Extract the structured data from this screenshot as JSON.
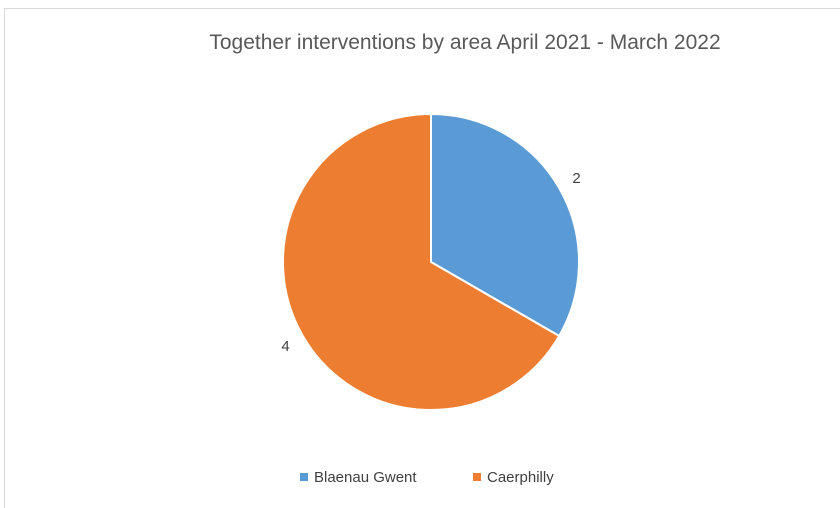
{
  "chart_data": {
    "type": "pie",
    "title": "Together interventions by area April 2021  - March 2022",
    "categories": [
      "Blaenau Gwent",
      "Caerphilly"
    ],
    "values": [
      2,
      4
    ],
    "data_labels": [
      "2",
      "4"
    ],
    "colors": [
      "#5b9bd5",
      "#ed7d31"
    ],
    "slice_border_color": "#ffffff",
    "legend_position": "bottom",
    "start_angle": "12 o'clock",
    "direction": "clockwise"
  }
}
